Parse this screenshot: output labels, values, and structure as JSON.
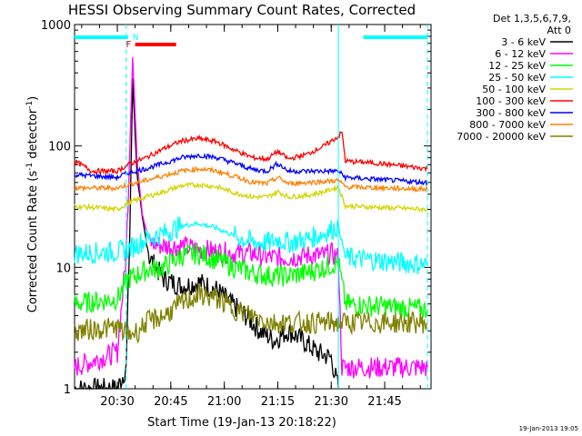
{
  "chart_data": {
    "type": "line",
    "title": "HESSI Observing Summary Count Rates, Corrected",
    "xlabel": "Start Time (19-Jan-13 20:18:22)",
    "ylabel_parts": {
      "pre": "Corrected Count Rate (s",
      "sup1": "-1",
      "mid": " detector",
      "sup2": "-1",
      "post": ")"
    },
    "x_tick_labels": [
      "20:30",
      "20:45",
      "21:00",
      "21:15",
      "21:30",
      "21:45"
    ],
    "x_ticks_minutes_after_2018": [
      12,
      27,
      42,
      57,
      72,
      87
    ],
    "xlim_minutes_after_2018": [
      0,
      100
    ],
    "yscale": "log",
    "ylim": [
      1,
      1000
    ],
    "y_tick_labels": [
      "1",
      "10",
      "100",
      "1000"
    ],
    "y_tick_values": [
      1,
      10,
      100,
      1000
    ],
    "legend_header": [
      "Det 1,3,5,6,7,9,",
      "Att 0"
    ],
    "legend_position": "right",
    "series": [
      {
        "name": "3 - 6 keV",
        "color": "#000000",
        "points": [
          [
            0,
            1
          ],
          [
            12,
            1
          ],
          [
            14.5,
            1.5
          ],
          [
            15.5,
            20
          ],
          [
            16.3,
            350
          ],
          [
            17.5,
            60
          ],
          [
            19,
            25
          ],
          [
            21,
            12
          ],
          [
            25,
            8
          ],
          [
            30,
            7
          ],
          [
            35,
            7.5
          ],
          [
            40,
            6.5
          ],
          [
            44,
            5
          ],
          [
            48,
            4
          ],
          [
            52,
            3
          ],
          [
            56,
            2.5
          ],
          [
            60,
            3
          ],
          [
            64,
            2.5
          ],
          [
            68,
            2
          ],
          [
            72,
            1.8
          ],
          [
            74,
            1
          ]
        ]
      },
      {
        "name": "6 - 12 keV",
        "color": "#ff00ff",
        "points": [
          [
            0,
            1.5
          ],
          [
            12,
            2
          ],
          [
            14.5,
            13
          ],
          [
            15.5,
            100
          ],
          [
            16.3,
            550
          ],
          [
            17.5,
            80
          ],
          [
            19,
            28
          ],
          [
            21,
            16
          ],
          [
            25,
            15
          ],
          [
            30,
            15
          ],
          [
            35,
            14
          ],
          [
            40,
            13.5
          ],
          [
            45,
            13
          ],
          [
            50,
            13
          ],
          [
            55,
            12
          ],
          [
            60,
            12
          ],
          [
            65,
            12.5
          ],
          [
            70,
            12.5
          ],
          [
            72,
            13
          ],
          [
            74,
            12
          ],
          [
            75,
            1.5
          ],
          [
            99,
            1.5
          ]
        ]
      },
      {
        "name": "12 - 25 keV",
        "color": "#00ff00",
        "points": [
          [
            0,
            5
          ],
          [
            12,
            5.5
          ],
          [
            15,
            8
          ],
          [
            17,
            8.5
          ],
          [
            20,
            9.5
          ],
          [
            25,
            10
          ],
          [
            30,
            12.5
          ],
          [
            35,
            13
          ],
          [
            40,
            11.5
          ],
          [
            45,
            10
          ],
          [
            50,
            9
          ],
          [
            55,
            8.5
          ],
          [
            60,
            8.5
          ],
          [
            65,
            9
          ],
          [
            70,
            10
          ],
          [
            74,
            11
          ],
          [
            76,
            5
          ],
          [
            99,
            4.5
          ]
        ]
      },
      {
        "name": "25 - 50 keV",
        "color": "#00ffff",
        "points": [
          [
            0,
            13
          ],
          [
            12,
            13.5
          ],
          [
            15,
            14
          ],
          [
            20,
            17
          ],
          [
            25,
            19
          ],
          [
            30,
            22
          ],
          [
            35,
            23
          ],
          [
            40,
            21
          ],
          [
            45,
            18
          ],
          [
            50,
            16
          ],
          [
            55,
            16
          ],
          [
            57,
            17
          ],
          [
            60,
            16
          ],
          [
            65,
            17
          ],
          [
            70,
            19
          ],
          [
            74,
            22
          ],
          [
            76,
            12
          ],
          [
            99,
            10.5
          ]
        ]
      },
      {
        "name": "50 - 100 keV",
        "color": "#d4d400",
        "points": [
          [
            0,
            32
          ],
          [
            12,
            30
          ],
          [
            15,
            34
          ],
          [
            20,
            38
          ],
          [
            25,
            42
          ],
          [
            30,
            47
          ],
          [
            35,
            48
          ],
          [
            40,
            46
          ],
          [
            45,
            41
          ],
          [
            50,
            38
          ],
          [
            54,
            38
          ],
          [
            57,
            42
          ],
          [
            60,
            38
          ],
          [
            65,
            39
          ],
          [
            70,
            42
          ],
          [
            74,
            46
          ],
          [
            76,
            32
          ],
          [
            99,
            30
          ]
        ]
      },
      {
        "name": "100 - 300 keV",
        "color": "#ff0000",
        "points": [
          [
            0,
            75
          ],
          [
            5,
            62
          ],
          [
            12,
            62
          ],
          [
            15,
            70
          ],
          [
            20,
            80
          ],
          [
            25,
            95
          ],
          [
            30,
            110
          ],
          [
            35,
            115
          ],
          [
            40,
            108
          ],
          [
            45,
            92
          ],
          [
            50,
            80
          ],
          [
            54,
            78
          ],
          [
            57,
            90
          ],
          [
            60,
            78
          ],
          [
            65,
            85
          ],
          [
            70,
            100
          ],
          [
            74,
            120
          ],
          [
            75,
            130
          ],
          [
            76,
            75
          ],
          [
            85,
            72
          ],
          [
            99,
            65
          ]
        ]
      },
      {
        "name": "300 - 800 keV",
        "color": "#0000ff",
        "points": [
          [
            0,
            58
          ],
          [
            12,
            55
          ],
          [
            15,
            60
          ],
          [
            20,
            65
          ],
          [
            25,
            72
          ],
          [
            30,
            80
          ],
          [
            35,
            84
          ],
          [
            40,
            80
          ],
          [
            45,
            72
          ],
          [
            50,
            64
          ],
          [
            54,
            62
          ],
          [
            57,
            72
          ],
          [
            60,
            62
          ],
          [
            65,
            62
          ],
          [
            70,
            62
          ],
          [
            74,
            62
          ],
          [
            76,
            55
          ],
          [
            99,
            50
          ]
        ]
      },
      {
        "name": "800 - 7000 keV",
        "color": "#ff8000",
        "points": [
          [
            0,
            45
          ],
          [
            12,
            45
          ],
          [
            15,
            48
          ],
          [
            20,
            52
          ],
          [
            25,
            57
          ],
          [
            30,
            62
          ],
          [
            35,
            65
          ],
          [
            40,
            62
          ],
          [
            45,
            56
          ],
          [
            50,
            50
          ],
          [
            54,
            49
          ],
          [
            57,
            55
          ],
          [
            60,
            49
          ],
          [
            65,
            50
          ],
          [
            70,
            51
          ],
          [
            74,
            52
          ],
          [
            76,
            46
          ],
          [
            99,
            44
          ]
        ]
      },
      {
        "name": "7000 - 20000 keV",
        "color": "#808000",
        "points": [
          [
            0,
            3
          ],
          [
            12,
            3.2
          ],
          [
            15,
            2.8
          ],
          [
            18,
            3
          ],
          [
            20,
            3.5
          ],
          [
            25,
            4
          ],
          [
            30,
            5
          ],
          [
            35,
            6
          ],
          [
            40,
            5.5
          ],
          [
            45,
            4.5
          ],
          [
            50,
            4
          ],
          [
            55,
            3.5
          ],
          [
            60,
            3.5
          ],
          [
            65,
            3.5
          ],
          [
            70,
            3.5
          ],
          [
            74,
            3.5
          ],
          [
            76,
            3.5
          ],
          [
            99,
            3.5
          ]
        ]
      }
    ]
  },
  "annotations": {
    "night_start_label": "N",
    "flare_label": "F",
    "night_bars_minutes": [
      [
        0,
        15
      ],
      [
        81,
        99
      ]
    ],
    "flare_bar_minutes": [
      17,
      28.5
    ],
    "night_color": "#00ffff",
    "flare_color": "#ff0000",
    "vertical_lines_minutes": [
      14.5,
      74,
      99
    ]
  },
  "footer": {
    "timestamp": "19-Jan-2013 19:05"
  }
}
